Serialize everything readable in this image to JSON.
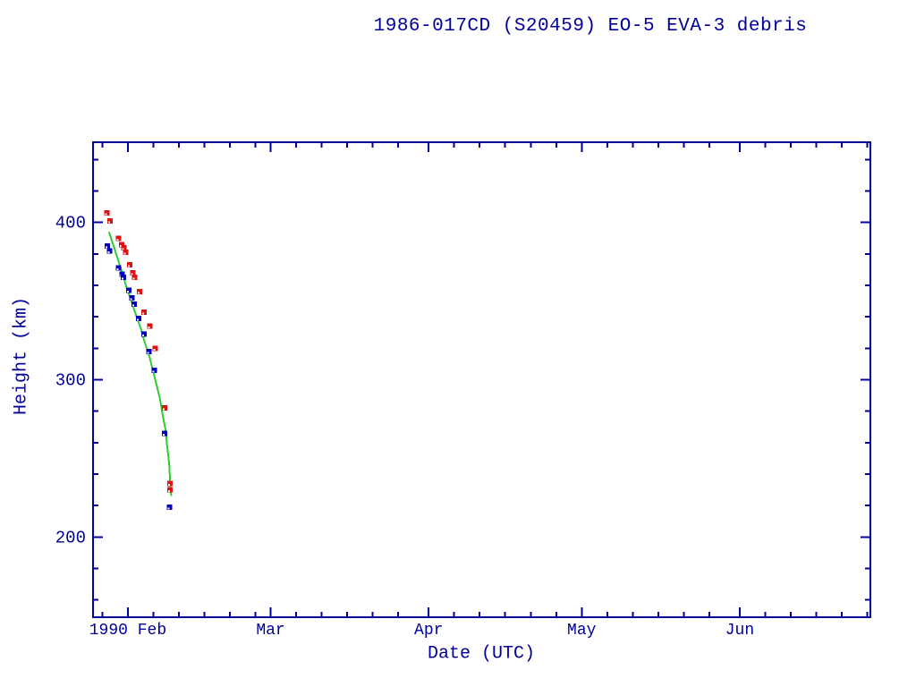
{
  "chart_data": {
    "type": "scatter",
    "title": "1986-017CD (S20459) EO-5 EVA-3 debris",
    "xlabel": "Date (UTC)",
    "ylabel": "Height (km)",
    "background": "#ffffff",
    "axis_color": "#000099",
    "grid": false,
    "legend": "none",
    "x_axis": {
      "unit": "days since 1990-02-01 UTC",
      "range": [
        -6.83,
        145.62
      ],
      "major_ticks": [
        {
          "label": "1990 Feb",
          "t": 0
        },
        {
          "label": "Mar",
          "t": 28
        },
        {
          "label": "Apr",
          "t": 59
        },
        {
          "label": "May",
          "t": 89
        },
        {
          "label": "Jun",
          "t": 120
        }
      ],
      "minor_ticks": [
        -5,
        5,
        10,
        15,
        20,
        25,
        33,
        38,
        43,
        48,
        53,
        64,
        69,
        74,
        79,
        84,
        94,
        99,
        104,
        109,
        114,
        125,
        130,
        135,
        140,
        145
      ]
    },
    "y_axis": {
      "unit": "km",
      "range": [
        149,
        451
      ],
      "major_ticks": [
        {
          "label": "200",
          "v": 200
        },
        {
          "label": "300",
          "v": 300
        },
        {
          "label": "400",
          "v": 400
        }
      ],
      "minor_ticks": [
        160,
        180,
        220,
        240,
        260,
        280,
        320,
        340,
        360,
        380,
        420,
        440
      ]
    },
    "series": [
      {
        "name": "red_squares",
        "marker": "square",
        "color": "#dd1111",
        "points": [
          [
            -4.1,
            406
          ],
          [
            -3.5,
            401
          ],
          [
            -1.8,
            390
          ],
          [
            -1.2,
            386
          ],
          [
            -0.8,
            384
          ],
          [
            -0.4,
            381
          ],
          [
            0.4,
            373
          ],
          [
            1.0,
            368
          ],
          [
            1.3,
            365
          ],
          [
            2.3,
            356
          ],
          [
            3.2,
            343
          ],
          [
            4.3,
            334
          ],
          [
            5.4,
            320
          ],
          [
            7.2,
            282
          ],
          [
            8.3,
            234
          ],
          [
            8.3,
            230
          ]
        ]
      },
      {
        "name": "blue_squares",
        "marker": "square",
        "color": "#0000bb",
        "points": [
          [
            -4.0,
            385
          ],
          [
            -3.6,
            382
          ],
          [
            -1.8,
            371
          ],
          [
            -1.1,
            367
          ],
          [
            -0.9,
            365
          ],
          [
            0.2,
            357
          ],
          [
            0.8,
            352
          ],
          [
            1.2,
            348
          ],
          [
            2.1,
            339
          ],
          [
            3.2,
            329
          ],
          [
            4.1,
            318
          ],
          [
            5.2,
            306
          ],
          [
            7.2,
            266
          ],
          [
            8.2,
            219
          ]
        ]
      },
      {
        "name": "green_fit_line",
        "marker": "none",
        "line": true,
        "color": "#33cc33",
        "points": [
          [
            -3.7,
            394
          ],
          [
            -2.8,
            385
          ],
          [
            -1.9,
            376
          ],
          [
            -1.0,
            367
          ],
          [
            -0.2,
            358
          ],
          [
            0.7,
            350
          ],
          [
            1.6,
            341
          ],
          [
            2.5,
            333
          ],
          [
            3.3,
            324
          ],
          [
            4.2,
            315
          ],
          [
            4.9,
            306
          ],
          [
            5.6,
            297
          ],
          [
            6.3,
            288
          ],
          [
            6.8,
            278
          ],
          [
            7.4,
            268
          ],
          [
            7.7,
            258
          ],
          [
            8.1,
            247
          ],
          [
            8.3,
            236
          ],
          [
            8.5,
            226
          ]
        ]
      }
    ]
  }
}
